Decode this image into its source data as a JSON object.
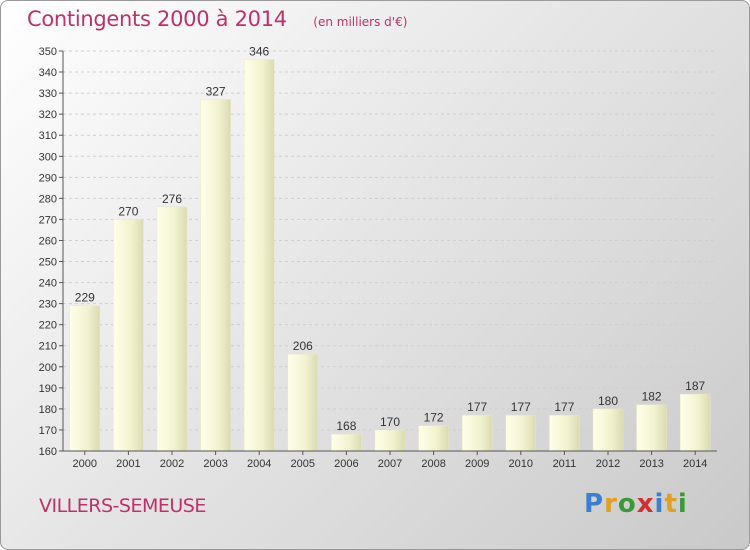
{
  "header": {
    "title": "Contingents 2000 à 2014",
    "unit": "(en milliers d'€)"
  },
  "footer": {
    "place": "VILLERS-SEMEUSE"
  },
  "brand": {
    "text": "Proxiti",
    "letter_colors": [
      "#3a7fd0",
      "#e0a020",
      "#3a9a3a",
      "#d03030",
      "#3a7fd0",
      "#e0a020",
      "#3a9a3a"
    ]
  },
  "colors": {
    "title": "#c0306b",
    "bar_light": "#fdfde6",
    "bar_dark": "#d9d9b0",
    "axis": "#555555",
    "grid": "#cfcfcf"
  },
  "chart_data": {
    "type": "bar",
    "title": "Contingents 2000 à 2014",
    "subtitle": "(en milliers d'€)",
    "xlabel": "",
    "ylabel": "",
    "ylim": [
      160,
      350
    ],
    "ytick_step": 10,
    "grid": true,
    "categories": [
      "2000",
      "2001",
      "2002",
      "2003",
      "2004",
      "2005",
      "2006",
      "2007",
      "2008",
      "2009",
      "2010",
      "2011",
      "2012",
      "2013",
      "2014"
    ],
    "values": [
      229,
      270,
      276,
      327,
      346,
      206,
      168,
      170,
      172,
      177,
      177,
      177,
      180,
      182,
      187
    ]
  }
}
